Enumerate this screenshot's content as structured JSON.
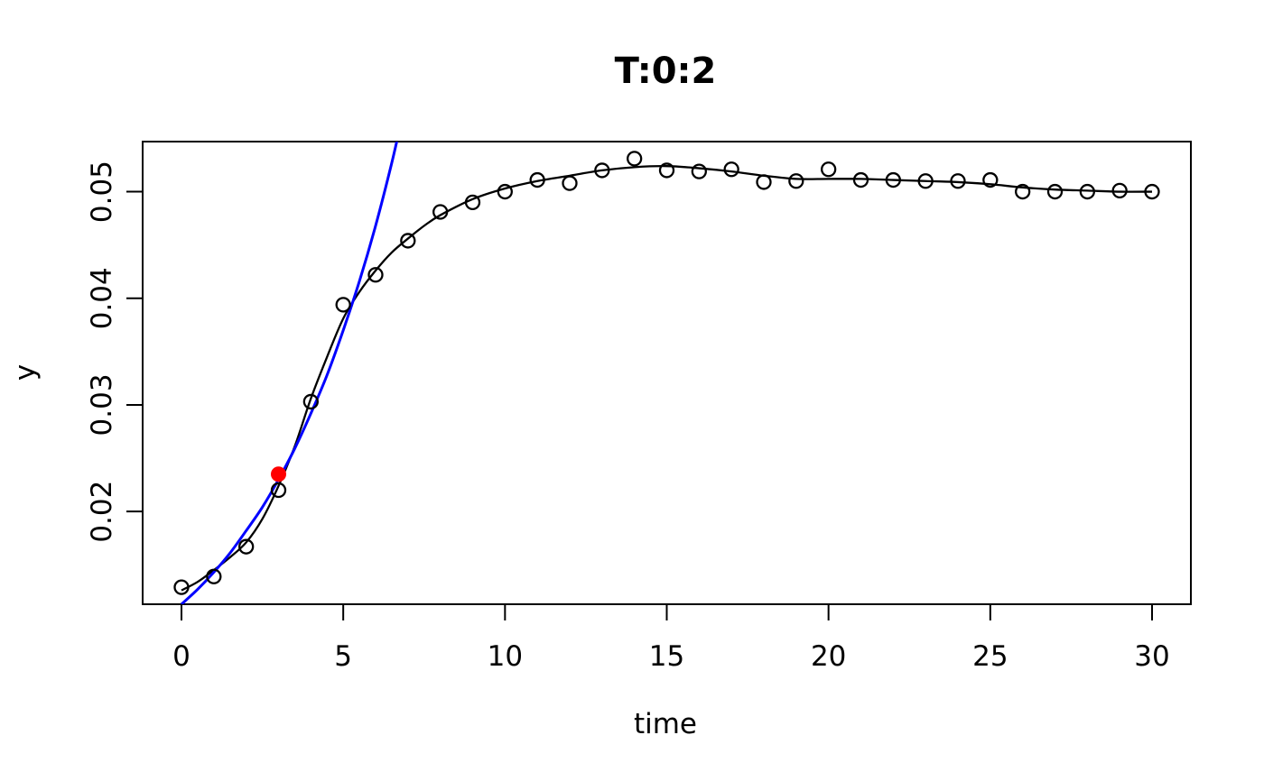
{
  "figure": {
    "title": "T:0:2",
    "background": "#ffffff"
  },
  "chart_data": {
    "type": "scatter",
    "title": "T:0:2",
    "xlabel": "time",
    "ylabel": "y",
    "x_ticks": [
      0,
      5,
      10,
      15,
      20,
      25,
      30
    ],
    "x_tick_labels": [
      "0",
      "5",
      "10",
      "15",
      "20",
      "25",
      "30"
    ],
    "y_ticks": [
      0.02,
      0.03,
      0.04,
      0.05
    ],
    "y_tick_labels": [
      "0.02",
      "0.03",
      "0.04",
      "0.05"
    ],
    "x_range": [
      -1.2,
      31.2
    ],
    "y_range": [
      0.0113,
      0.0547
    ],
    "grid": false,
    "legend": "none",
    "series": [
      {
        "name": "observations",
        "style": "open-circles",
        "color": "#000000",
        "x": [
          0,
          1,
          2,
          3,
          4,
          5,
          6,
          7,
          8,
          9,
          10,
          11,
          12,
          13,
          14,
          15,
          16,
          17,
          18,
          19,
          20,
          21,
          22,
          23,
          24,
          25,
          26,
          27,
          28,
          29,
          30
        ],
        "y": [
          0.0129,
          0.0139,
          0.0167,
          0.022,
          0.0303,
          0.0394,
          0.0422,
          0.0454,
          0.0481,
          0.049,
          0.05,
          0.0511,
          0.0508,
          0.052,
          0.0531,
          0.052,
          0.0519,
          0.0521,
          0.0509,
          0.051,
          0.0521,
          0.0511,
          0.0511,
          0.051,
          0.051,
          0.0511,
          0.05,
          0.05,
          0.05,
          0.0501,
          0.05
        ]
      },
      {
        "name": "fitted-model-curve",
        "style": "line",
        "color": "#000000",
        "x": [
          0,
          0.5,
          1,
          1.5,
          2,
          2.5,
          3,
          3.5,
          4,
          4.5,
          5,
          5.5,
          6,
          6.5,
          7,
          7.5,
          8,
          9,
          10,
          11,
          12,
          13,
          14,
          15,
          16,
          17,
          18,
          19,
          20,
          21,
          22,
          23,
          24,
          25,
          26,
          27,
          28,
          29,
          30
        ],
        "y": [
          0.0126,
          0.0134,
          0.0145,
          0.0157,
          0.0171,
          0.0193,
          0.0224,
          0.0261,
          0.0306,
          0.0345,
          0.0381,
          0.0406,
          0.0426,
          0.0443,
          0.0456,
          0.0468,
          0.0478,
          0.0493,
          0.0503,
          0.051,
          0.0515,
          0.052,
          0.0523,
          0.0524,
          0.0522,
          0.0519,
          0.0515,
          0.0512,
          0.0512,
          0.0512,
          0.0511,
          0.051,
          0.0509,
          0.0507,
          0.0504,
          0.0502,
          0.0501,
          0.05,
          0.05
        ]
      },
      {
        "name": "exponential-approximation",
        "style": "line",
        "color": "#0000ff",
        "x": [
          0,
          0.5,
          1,
          1.5,
          2,
          2.5,
          3,
          3.5,
          4,
          4.5,
          5,
          5.5,
          6,
          6.5,
          6.8
        ],
        "y": [
          0.0113,
          0.0127,
          0.0143,
          0.0161,
          0.0182,
          0.0204,
          0.023,
          0.0259,
          0.0292,
          0.0328,
          0.037,
          0.0416,
          0.0468,
          0.0527,
          0.0567
        ]
      }
    ],
    "highlight_point": {
      "x": 3,
      "y": 0.0235,
      "color": "#ff0000"
    },
    "colors": {
      "axis": "#000000",
      "points": "#000000",
      "fit_line": "#000000",
      "exp_line": "#0000ff",
      "highlight": "#ff0000",
      "background": "#ffffff"
    }
  }
}
